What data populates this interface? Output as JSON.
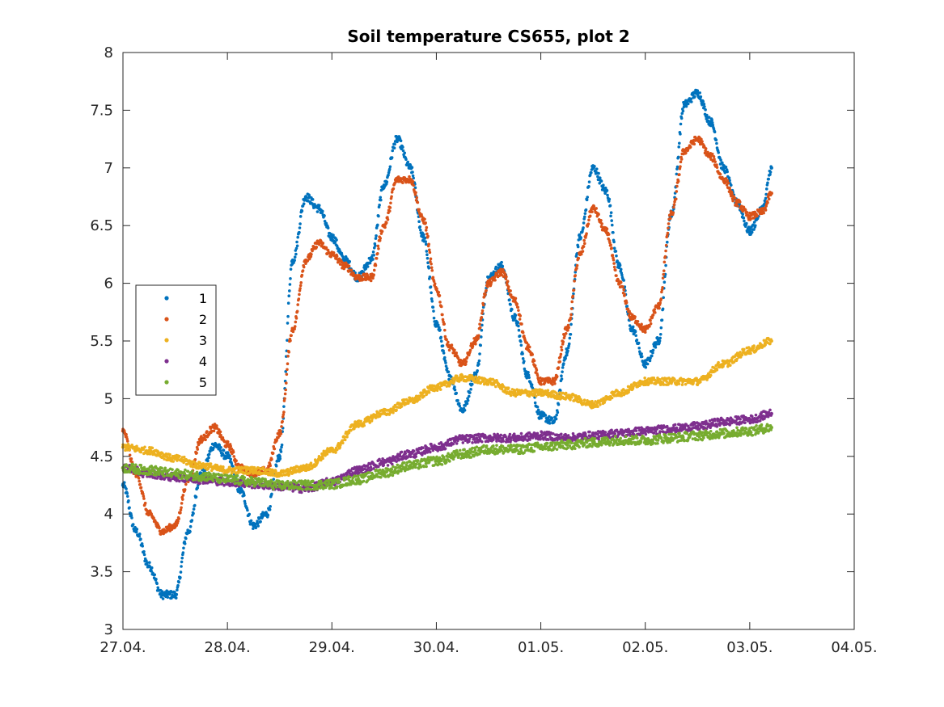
{
  "chart_data": {
    "type": "scatter",
    "title": "Soil temperature CS655, plot 2",
    "xlabel": "",
    "ylabel": "",
    "x_ticks": [
      "27.04.",
      "28.04.",
      "29.04.",
      "30.04.",
      "01.05.",
      "02.05.",
      "03.05.",
      "04.05."
    ],
    "y_ticks": [
      "3",
      "3.5",
      "4",
      "4.5",
      "5",
      "5.5",
      "6",
      "6.5",
      "7",
      "7.5",
      "8"
    ],
    "xlim": [
      "27.04.",
      "04.05."
    ],
    "ylim": [
      3,
      8
    ],
    "legend_position": "left",
    "grid": false,
    "marker": "dot",
    "series": [
      {
        "name": "1",
        "color": "#0072BD",
        "points": [
          [
            "27.04. 00:00",
            4.25
          ],
          [
            "27.04. 03:00",
            3.85
          ],
          [
            "27.04. 06:00",
            3.55
          ],
          [
            "27.04. 09:00",
            3.3
          ],
          [
            "27.04. 12:00",
            3.3
          ],
          [
            "27.04. 15:00",
            3.85
          ],
          [
            "27.04. 18:00",
            4.35
          ],
          [
            "27.04. 21:00",
            4.6
          ],
          [
            "28.04. 00:00",
            4.5
          ],
          [
            "28.04. 03:00",
            4.2
          ],
          [
            "28.04. 06:00",
            3.9
          ],
          [
            "28.04. 09:00",
            4.0
          ],
          [
            "28.04. 12:00",
            4.5
          ],
          [
            "28.04. 15:00",
            6.2
          ],
          [
            "28.04. 18:00",
            6.75
          ],
          [
            "28.04. 21:00",
            6.65
          ],
          [
            "29.04. 00:00",
            6.4
          ],
          [
            "29.04. 03:00",
            6.2
          ],
          [
            "29.04. 06:00",
            6.05
          ],
          [
            "29.04. 09:00",
            6.2
          ],
          [
            "29.04. 12:00",
            6.85
          ],
          [
            "29.04. 15:00",
            7.25
          ],
          [
            "29.04. 18:00",
            7.0
          ],
          [
            "29.04. 21:00",
            6.4
          ],
          [
            "30.04. 00:00",
            5.65
          ],
          [
            "30.04. 03:00",
            5.2
          ],
          [
            "30.04. 06:00",
            4.9
          ],
          [
            "30.04. 09:00",
            5.2
          ],
          [
            "30.04. 12:00",
            6.05
          ],
          [
            "30.04. 15:00",
            6.15
          ],
          [
            "30.04. 18:00",
            5.7
          ],
          [
            "30.04. 21:00",
            5.2
          ],
          [
            "01.05. 00:00",
            4.85
          ],
          [
            "01.05. 03:00",
            4.8
          ],
          [
            "01.05. 06:00",
            5.4
          ],
          [
            "01.05. 09:00",
            6.4
          ],
          [
            "01.05. 12:00",
            7.0
          ],
          [
            "01.05. 15:00",
            6.8
          ],
          [
            "01.05. 18:00",
            6.15
          ],
          [
            "01.05. 21:00",
            5.6
          ],
          [
            "02.05. 00:00",
            5.3
          ],
          [
            "02.05. 03:00",
            5.5
          ],
          [
            "02.05. 06:00",
            6.6
          ],
          [
            "02.05. 09:00",
            7.55
          ],
          [
            "02.05. 12:00",
            7.65
          ],
          [
            "02.05. 15:00",
            7.4
          ],
          [
            "02.05. 18:00",
            7.0
          ],
          [
            "02.05. 21:00",
            6.7
          ],
          [
            "03.05. 00:00",
            6.45
          ],
          [
            "03.05. 03:00",
            6.65
          ],
          [
            "03.05. 05:00",
            7.0
          ]
        ]
      },
      {
        "name": "2",
        "color": "#D95319",
        "points": [
          [
            "27.04. 00:00",
            4.72
          ],
          [
            "27.04. 03:00",
            4.35
          ],
          [
            "27.04. 06:00",
            4.0
          ],
          [
            "27.04. 09:00",
            3.85
          ],
          [
            "27.04. 12:00",
            3.9
          ],
          [
            "27.04. 15:00",
            4.3
          ],
          [
            "27.04. 18:00",
            4.65
          ],
          [
            "27.04. 21:00",
            4.75
          ],
          [
            "28.04. 00:00",
            4.6
          ],
          [
            "28.04. 03:00",
            4.4
          ],
          [
            "28.04. 06:00",
            4.35
          ],
          [
            "28.04. 09:00",
            4.38
          ],
          [
            "28.04. 12:00",
            4.7
          ],
          [
            "28.04. 15:00",
            5.6
          ],
          [
            "28.04. 18:00",
            6.2
          ],
          [
            "28.04. 21:00",
            6.35
          ],
          [
            "29.04. 00:00",
            6.25
          ],
          [
            "29.04. 03:00",
            6.15
          ],
          [
            "29.04. 06:00",
            6.05
          ],
          [
            "29.04. 09:00",
            6.05
          ],
          [
            "29.04. 12:00",
            6.5
          ],
          [
            "29.04. 15:00",
            6.9
          ],
          [
            "29.04. 18:00",
            6.9
          ],
          [
            "29.04. 21:00",
            6.55
          ],
          [
            "30.04. 00:00",
            5.95
          ],
          [
            "30.04. 03:00",
            5.45
          ],
          [
            "30.04. 06:00",
            5.3
          ],
          [
            "30.04. 09:00",
            5.5
          ],
          [
            "30.04. 12:00",
            6.0
          ],
          [
            "30.04. 15:00",
            6.1
          ],
          [
            "30.04. 18:00",
            5.85
          ],
          [
            "30.04. 21:00",
            5.45
          ],
          [
            "01.05. 00:00",
            5.15
          ],
          [
            "01.05. 03:00",
            5.15
          ],
          [
            "01.05. 06:00",
            5.6
          ],
          [
            "01.05. 09:00",
            6.25
          ],
          [
            "01.05. 12:00",
            6.65
          ],
          [
            "01.05. 15:00",
            6.45
          ],
          [
            "01.05. 18:00",
            6.0
          ],
          [
            "01.05. 21:00",
            5.7
          ],
          [
            "02.05. 00:00",
            5.6
          ],
          [
            "02.05. 03:00",
            5.8
          ],
          [
            "02.05. 06:00",
            6.6
          ],
          [
            "02.05. 09:00",
            7.15
          ],
          [
            "02.05. 12:00",
            7.25
          ],
          [
            "02.05. 15:00",
            7.1
          ],
          [
            "02.05. 18:00",
            6.9
          ],
          [
            "02.05. 21:00",
            6.7
          ],
          [
            "03.05. 00:00",
            6.58
          ],
          [
            "03.05. 03:00",
            6.62
          ],
          [
            "03.05. 05:00",
            6.78
          ]
        ]
      },
      {
        "name": "3",
        "color": "#EDB120",
        "points": [
          [
            "27.04. 00:00",
            4.58
          ],
          [
            "27.04. 06:00",
            4.55
          ],
          [
            "27.04. 12:00",
            4.48
          ],
          [
            "27.04. 18:00",
            4.42
          ],
          [
            "28.04. 00:00",
            4.38
          ],
          [
            "28.04. 06:00",
            4.38
          ],
          [
            "28.04. 12:00",
            4.35
          ],
          [
            "28.04. 18:00",
            4.4
          ],
          [
            "29.04. 00:00",
            4.55
          ],
          [
            "29.04. 06:00",
            4.78
          ],
          [
            "29.04. 12:00",
            4.88
          ],
          [
            "29.04. 18:00",
            4.98
          ],
          [
            "30.04. 00:00",
            5.1
          ],
          [
            "30.04. 06:00",
            5.18
          ],
          [
            "30.04. 12:00",
            5.15
          ],
          [
            "30.04. 18:00",
            5.05
          ],
          [
            "01.05. 00:00",
            5.05
          ],
          [
            "01.05. 06:00",
            5.02
          ],
          [
            "01.05. 12:00",
            4.95
          ],
          [
            "01.05. 18:00",
            5.05
          ],
          [
            "02.05. 00:00",
            5.15
          ],
          [
            "02.05. 06:00",
            5.15
          ],
          [
            "02.05. 12:00",
            5.15
          ],
          [
            "02.05. 18:00",
            5.3
          ],
          [
            "03.05. 00:00",
            5.42
          ],
          [
            "03.05. 05:00",
            5.5
          ]
        ]
      },
      {
        "name": "4",
        "color": "#7E2F8E",
        "points": [
          [
            "27.04. 00:00",
            4.4
          ],
          [
            "27.04. 06:00",
            4.35
          ],
          [
            "27.04. 12:00",
            4.32
          ],
          [
            "27.04. 18:00",
            4.3
          ],
          [
            "28.04. 00:00",
            4.28
          ],
          [
            "28.04. 06:00",
            4.26
          ],
          [
            "28.04. 12:00",
            4.24
          ],
          [
            "28.04. 18:00",
            4.22
          ],
          [
            "29.04. 00:00",
            4.28
          ],
          [
            "29.04. 06:00",
            4.38
          ],
          [
            "29.04. 12:00",
            4.45
          ],
          [
            "29.04. 18:00",
            4.52
          ],
          [
            "30.04. 00:00",
            4.58
          ],
          [
            "30.04. 06:00",
            4.65
          ],
          [
            "30.04. 12:00",
            4.66
          ],
          [
            "30.04. 18:00",
            4.66
          ],
          [
            "01.05. 00:00",
            4.68
          ],
          [
            "01.05. 06:00",
            4.66
          ],
          [
            "01.05. 12:00",
            4.68
          ],
          [
            "01.05. 18:00",
            4.7
          ],
          [
            "02.05. 00:00",
            4.72
          ],
          [
            "02.05. 06:00",
            4.74
          ],
          [
            "02.05. 12:00",
            4.76
          ],
          [
            "02.05. 18:00",
            4.8
          ],
          [
            "03.05. 00:00",
            4.82
          ],
          [
            "03.05. 05:00",
            4.87
          ]
        ]
      },
      {
        "name": "5",
        "color": "#77AC30",
        "points": [
          [
            "27.04. 00:00",
            4.4
          ],
          [
            "27.04. 06:00",
            4.38
          ],
          [
            "27.04. 12:00",
            4.35
          ],
          [
            "27.04. 18:00",
            4.33
          ],
          [
            "28.04. 00:00",
            4.3
          ],
          [
            "28.04. 06:00",
            4.28
          ],
          [
            "28.04. 12:00",
            4.25
          ],
          [
            "28.04. 18:00",
            4.25
          ],
          [
            "29.04. 00:00",
            4.26
          ],
          [
            "29.04. 06:00",
            4.3
          ],
          [
            "29.04. 12:00",
            4.36
          ],
          [
            "29.04. 18:00",
            4.42
          ],
          [
            "30.04. 00:00",
            4.46
          ],
          [
            "30.04. 06:00",
            4.52
          ],
          [
            "30.04. 12:00",
            4.56
          ],
          [
            "30.04. 18:00",
            4.56
          ],
          [
            "01.05. 00:00",
            4.58
          ],
          [
            "01.05. 06:00",
            4.6
          ],
          [
            "01.05. 12:00",
            4.62
          ],
          [
            "01.05. 18:00",
            4.64
          ],
          [
            "02.05. 00:00",
            4.64
          ],
          [
            "02.05. 06:00",
            4.66
          ],
          [
            "02.05. 12:00",
            4.68
          ],
          [
            "02.05. 18:00",
            4.7
          ],
          [
            "03.05. 00:00",
            4.72
          ],
          [
            "03.05. 05:00",
            4.75
          ]
        ]
      }
    ]
  }
}
